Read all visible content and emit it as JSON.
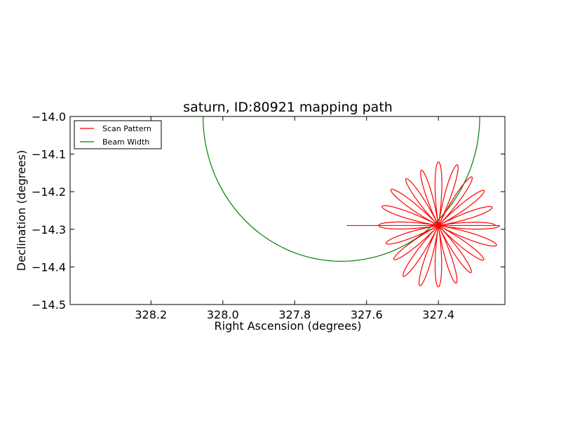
{
  "chart_data": {
    "type": "line",
    "title": "saturn, ID:80921 mapping path",
    "xlabel": "Right Ascension (degrees)",
    "ylabel": "Declination (degrees)",
    "xlim": [
      328.425,
      327.215
    ],
    "ylim": [
      -14.5,
      -14.0
    ],
    "x_inverted": true,
    "xticks": [
      328.2,
      328.0,
      327.8,
      327.6,
      327.4
    ],
    "xtick_labels": [
      "328.2",
      "328.0",
      "327.8",
      "327.6",
      "327.4"
    ],
    "yticks": [
      -14.0,
      -14.1,
      -14.2,
      -14.3,
      -14.4,
      -14.5
    ],
    "ytick_labels": [
      "−14.0",
      "−14.1",
      "−14.2",
      "−14.3",
      "−14.4",
      "−14.5"
    ],
    "grid": false,
    "legend_position": "top-left",
    "series": [
      {
        "name": "Scan Pattern",
        "color": "#ff0000",
        "shape": "rosette",
        "center": [
          327.4,
          -14.29
        ],
        "petals": 20,
        "petal_length_deg": 0.17,
        "lead_in": [
          [
            327.655,
            -14.29
          ],
          [
            327.4,
            -14.29
          ]
        ]
      },
      {
        "name": "Beam Width",
        "color": "#008000",
        "shape": "circle",
        "center": [
          327.67,
          -14.0
        ],
        "radius_deg": 0.385
      }
    ]
  }
}
